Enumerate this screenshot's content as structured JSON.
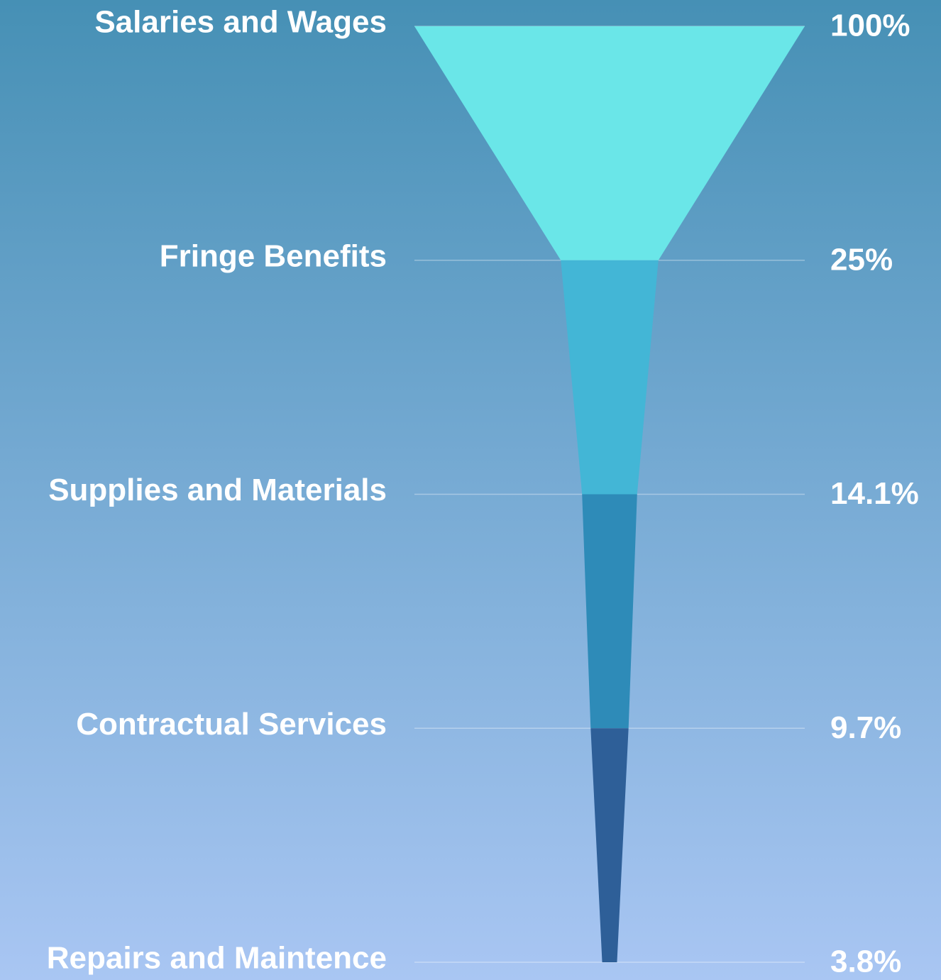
{
  "chart_data": {
    "type": "funnel",
    "categories": [
      "Salaries and Wages",
      "Fringe Benefits",
      "Supplies and Materials",
      "Contractual Services",
      "Repairs and Maintence"
    ],
    "values": [
      100,
      25,
      14.1,
      9.7,
      3.8
    ],
    "value_labels": [
      "100%",
      "25%",
      "14.1%",
      "9.7%",
      "3.8%"
    ],
    "colors": [
      "#6ae6e8",
      "#43b6d6",
      "#2e8bb8",
      "#2e5f98"
    ],
    "xlim": [
      0,
      100
    ]
  }
}
